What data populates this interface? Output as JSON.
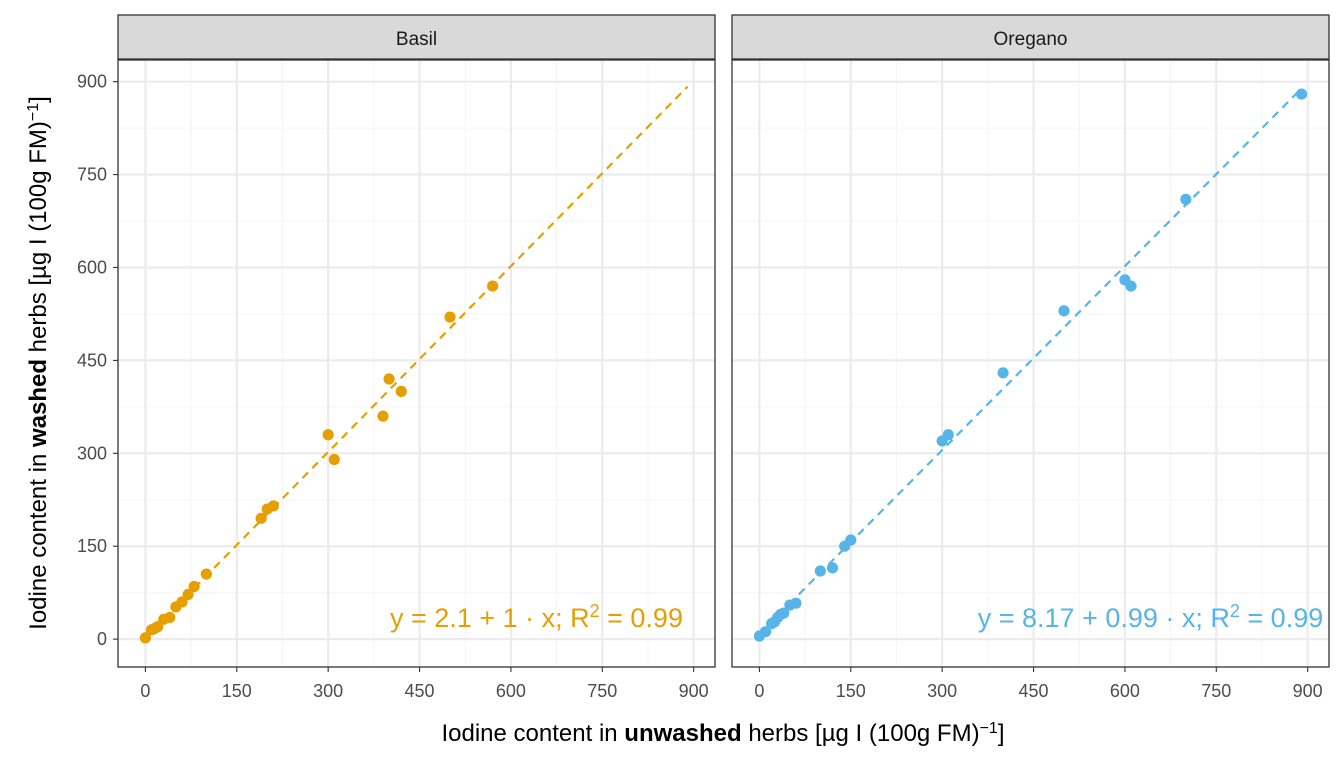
{
  "chart_data": {
    "type": "scatter",
    "facets": [
      {
        "name": "Basil",
        "color": "#E69F00",
        "points": [
          [
            0,
            2
          ],
          [
            10,
            15
          ],
          [
            15,
            17
          ],
          [
            20,
            20
          ],
          [
            30,
            32
          ],
          [
            40,
            35
          ],
          [
            50,
            52
          ],
          [
            60,
            60
          ],
          [
            70,
            72
          ],
          [
            80,
            85
          ],
          [
            100,
            105
          ],
          [
            190,
            195
          ],
          [
            200,
            210
          ],
          [
            210,
            215
          ],
          [
            300,
            330
          ],
          [
            310,
            290
          ],
          [
            390,
            360
          ],
          [
            400,
            420
          ],
          [
            420,
            400
          ],
          [
            500,
            520
          ],
          [
            570,
            570
          ]
        ],
        "fit": {
          "intercept": 2.1,
          "slope": 1.0,
          "x_range": [
            0,
            890
          ]
        },
        "annotation": {
          "pre": "y = 2.1 + 1 · x;  R",
          "sup": "2",
          "post": " = 0.99"
        }
      },
      {
        "name": "Oregano",
        "color": "#56B4E9",
        "points": [
          [
            0,
            5
          ],
          [
            10,
            12
          ],
          [
            20,
            25
          ],
          [
            25,
            28
          ],
          [
            30,
            35
          ],
          [
            35,
            40
          ],
          [
            40,
            42
          ],
          [
            50,
            55
          ],
          [
            60,
            58
          ],
          [
            100,
            110
          ],
          [
            120,
            115
          ],
          [
            140,
            150
          ],
          [
            150,
            160
          ],
          [
            300,
            320
          ],
          [
            310,
            330
          ],
          [
            400,
            430
          ],
          [
            500,
            530
          ],
          [
            600,
            580
          ],
          [
            610,
            570
          ],
          [
            700,
            710
          ],
          [
            890,
            880
          ]
        ],
        "fit": {
          "intercept": 8.17,
          "slope": 0.99,
          "x_range": [
            0,
            890
          ]
        },
        "annotation": {
          "pre": "y = 8.17 + 0.99 · x;  R",
          "sup": "2",
          "post": " = 0.99"
        }
      }
    ],
    "x_ticks": [
      0,
      150,
      300,
      450,
      600,
      750,
      900
    ],
    "y_ticks": [
      0,
      150,
      300,
      450,
      600,
      750,
      900
    ],
    "xlim": [
      -45,
      935
    ],
    "ylim": [
      -45,
      935
    ],
    "xlabel": {
      "pre": "Iodine content in ",
      "bold": "unwashed",
      "post": " herbs [µg I (100g FM)",
      "sup": "−1",
      "end": "]"
    },
    "ylabel": {
      "pre": "Iodine content in ",
      "bold": "washed",
      "post": " herbs [µg I (100g FM)",
      "sup": "−1",
      "end": "]"
    },
    "grid": true,
    "theme": "bw",
    "colors": {
      "grid_major": "#ebebeb",
      "grid_minor": "#f5f5f5",
      "strip_bg": "#d9d9d9",
      "border": "#333333"
    }
  }
}
